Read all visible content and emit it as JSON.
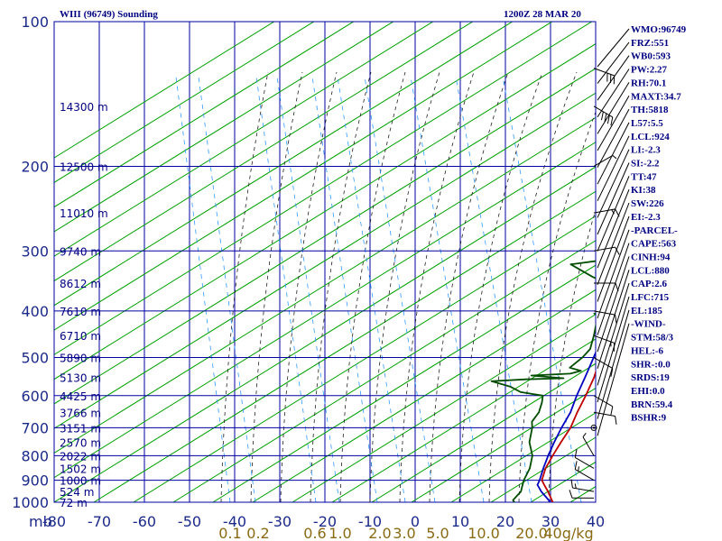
{
  "header": {
    "station": "WIII (96749) Sounding",
    "time": "1200Z 28 MAR 20"
  },
  "colors": {
    "grid": "#0000a0",
    "dry_adiabat": "#00a000",
    "moist_adiabat": "#202020",
    "mixing_ratio": "#3399ff",
    "temperature": "#c00000",
    "dewpoint": "#004d00",
    "parcel": "#0000c0",
    "wind": "#000000"
  },
  "chart_data": {
    "type": "line",
    "title": "WIII (96749) Sounding",
    "xlabel": "",
    "ylabel": "mb",
    "pressure_levels": [
      100,
      200,
      300,
      400,
      500,
      600,
      700,
      800,
      900,
      1000
    ],
    "pressure_tick_labels": [
      "100",
      "200",
      "300",
      "400",
      "500",
      "600",
      "700",
      "800",
      "900",
      "1000"
    ],
    "temperature_ticks": [
      -80,
      -70,
      -60,
      -50,
      -40,
      -30,
      -20,
      -10,
      0,
      10,
      20,
      30,
      40
    ],
    "temperature_tick_labels": [
      "-80",
      "-70",
      "-60",
      "-50",
      "-40",
      "-30",
      "-20",
      "-10",
      "0",
      "10",
      "20",
      "30",
      "40"
    ],
    "mixing_ratio_labels": [
      "0.1",
      "0.2",
      "0.6",
      "1.0",
      "2.0",
      "3.0",
      "5.0",
      "10.0",
      "20.0",
      "40g/kg"
    ],
    "height_labels": [
      {
        "p": 150,
        "label": "14300 m"
      },
      {
        "p": 200,
        "label": "12500 m"
      },
      {
        "p": 250,
        "label": "11010 m"
      },
      {
        "p": 300,
        "label": "9740 m"
      },
      {
        "p": 350,
        "label": "8612 m"
      },
      {
        "p": 400,
        "label": "7610 m"
      },
      {
        "p": 450,
        "label": "6710 m"
      },
      {
        "p": 500,
        "label": "5890 m"
      },
      {
        "p": 550,
        "label": "5130 m"
      },
      {
        "p": 600,
        "label": "4425 m"
      },
      {
        "p": 650,
        "label": "3766 m"
      },
      {
        "p": 700,
        "label": "3151 m"
      },
      {
        "p": 750,
        "label": "2570 m"
      },
      {
        "p": 800,
        "label": "2022 m"
      },
      {
        "p": 850,
        "label": "1502 m"
      },
      {
        "p": 900,
        "label": "1000 m"
      },
      {
        "p": 950,
        "label": "524 m"
      },
      {
        "p": 1000,
        "label": "72 m"
      }
    ],
    "series": [
      {
        "key": "temperature",
        "points": [
          {
            "p": 1000,
            "t": 30.5
          },
          {
            "p": 950,
            "t": 26.0
          },
          {
            "p": 925,
            "t": 23.5
          },
          {
            "p": 900,
            "t": 21.0
          },
          {
            "p": 850,
            "t": 18.0
          },
          {
            "p": 800,
            "t": 15.5
          },
          {
            "p": 750,
            "t": 13.0
          },
          {
            "p": 700,
            "t": 10.5
          },
          {
            "p": 650,
            "t": 7.0
          },
          {
            "p": 600,
            "t": 3.5
          },
          {
            "p": 550,
            "t": -0.5
          },
          {
            "p": 500,
            "t": -5.5
          },
          {
            "p": 450,
            "t": -9.5
          },
          {
            "p": 400,
            "t": -14.0
          },
          {
            "p": 350,
            "t": -19.5
          },
          {
            "p": 300,
            "t": -27.0
          },
          {
            "p": 250,
            "t": -36.0
          },
          {
            "p": 200,
            "t": -48.0
          },
          {
            "p": 150,
            "t": -64.0
          },
          {
            "p": 140,
            "t": -68.0
          },
          {
            "p": 128,
            "t": -73.0
          }
        ]
      },
      {
        "key": "dewpoint",
        "points": [
          {
            "p": 1000,
            "t": 22.0
          },
          {
            "p": 990,
            "t": 21.0
          },
          {
            "p": 950,
            "t": 20.0
          },
          {
            "p": 925,
            "t": 18.5
          },
          {
            "p": 900,
            "t": 17.0
          },
          {
            "p": 850,
            "t": 14.5
          },
          {
            "p": 800,
            "t": 11.0
          },
          {
            "p": 750,
            "t": 6.0
          },
          {
            "p": 700,
            "t": 2.0
          },
          {
            "p": 680,
            "t": 0.0
          },
          {
            "p": 650,
            "t": -1.5
          },
          {
            "p": 620,
            "t": -4.0
          },
          {
            "p": 600,
            "t": -6.0
          },
          {
            "p": 590,
            "t": -12.0
          },
          {
            "p": 575,
            "t": -16.0
          },
          {
            "p": 560,
            "t": -22.0
          },
          {
            "p": 555,
            "t": -15.0
          },
          {
            "p": 552,
            "t": -7.0
          },
          {
            "p": 545,
            "t": -15.0
          },
          {
            "p": 540,
            "t": -7.0
          },
          {
            "p": 533,
            "t": -5.5
          },
          {
            "p": 525,
            "t": -9.0
          },
          {
            "p": 500,
            "t": -9.5
          },
          {
            "p": 480,
            "t": -10.5
          },
          {
            "p": 450,
            "t": -14.0
          },
          {
            "p": 420,
            "t": -18.0
          },
          {
            "p": 410,
            "t": -17.5
          },
          {
            "p": 405,
            "t": -21.0
          },
          {
            "p": 400,
            "t": -18.5
          },
          {
            "p": 395,
            "t": -22.0
          },
          {
            "p": 380,
            "t": -23.0
          },
          {
            "p": 360,
            "t": -25.0
          },
          {
            "p": 350,
            "t": -28.0
          },
          {
            "p": 340,
            "t": -33.0
          },
          {
            "p": 320,
            "t": -42.0
          },
          {
            "p": 310,
            "t": -33.0
          },
          {
            "p": 300,
            "t": -32.0
          },
          {
            "p": 280,
            "t": -36.0
          },
          {
            "p": 260,
            "t": -40.0
          },
          {
            "p": 250,
            "t": -43.0
          }
        ]
      },
      {
        "key": "parcel",
        "points": [
          {
            "p": 1000,
            "t": 30.0
          },
          {
            "p": 950,
            "t": 24.5
          },
          {
            "p": 920,
            "t": 21.5
          },
          {
            "p": 900,
            "t": 20.5
          },
          {
            "p": 850,
            "t": 17.5
          },
          {
            "p": 800,
            "t": 14.5
          },
          {
            "p": 750,
            "t": 11.5
          },
          {
            "p": 700,
            "t": 8.5
          },
          {
            "p": 650,
            "t": 5.5
          },
          {
            "p": 600,
            "t": 1.5
          },
          {
            "p": 550,
            "t": -2.5
          },
          {
            "p": 500,
            "t": -7.0
          },
          {
            "p": 450,
            "t": -12.0
          },
          {
            "p": 400,
            "t": -18.0
          },
          {
            "p": 350,
            "t": -25.0
          },
          {
            "p": 300,
            "t": -33.5
          },
          {
            "p": 250,
            "t": -44.0
          },
          {
            "p": 200,
            "t": -57.0
          },
          {
            "p": 150,
            "t": -72.0
          },
          {
            "p": 123,
            "t": -80.0
          }
        ]
      }
    ],
    "winds": [
      {
        "p": 980,
        "dir": 270,
        "kt": 10
      },
      {
        "p": 950,
        "dir": 280,
        "kt": 15
      },
      {
        "p": 900,
        "dir": 300,
        "kt": 15
      },
      {
        "p": 850,
        "dir": 300,
        "kt": 10
      },
      {
        "p": 800,
        "dir": 330,
        "kt": 5
      },
      {
        "p": 700,
        "dir": 90,
        "kt": 0
      },
      {
        "p": 650,
        "dir": 100,
        "kt": 10
      },
      {
        "p": 600,
        "dir": 120,
        "kt": 10
      },
      {
        "p": 500,
        "dir": 120,
        "kt": 10
      },
      {
        "p": 450,
        "dir": 110,
        "kt": 15
      },
      {
        "p": 400,
        "dir": 100,
        "kt": 10
      },
      {
        "p": 350,
        "dir": 90,
        "kt": 10
      },
      {
        "p": 300,
        "dir": 80,
        "kt": 10
      },
      {
        "p": 250,
        "dir": 80,
        "kt": 15
      },
      {
        "p": 200,
        "dir": 60,
        "kt": 5
      },
      {
        "p": 150,
        "dir": 120,
        "kt": 40
      },
      {
        "p": 125,
        "dir": 110,
        "kt": 30
      }
    ]
  },
  "indices": [
    "WMO:96749",
    "FRZ:551",
    "WB0:593",
    "PW:2.27",
    "RH:70.1",
    "MAXT:34.7",
    "TH:5818",
    "L57:5.5",
    "LCL:924",
    "LI:-2.3",
    "SI:-2.2",
    "TT:47",
    "KI:38",
    "SW:226",
    "EI:-2.3",
    "-PARCEL-",
    "CAPE:563",
    "CINH:94",
    "LCL:880",
    "CAP:2.6",
    "LFC:715",
    "EL:185",
    "-WIND-",
    "STM:58/3",
    "HEL:-6",
    "SHR-:0.0",
    "SRDS:19",
    "EHI:0.0",
    "BRN:59.4",
    "BSHR:9"
  ]
}
